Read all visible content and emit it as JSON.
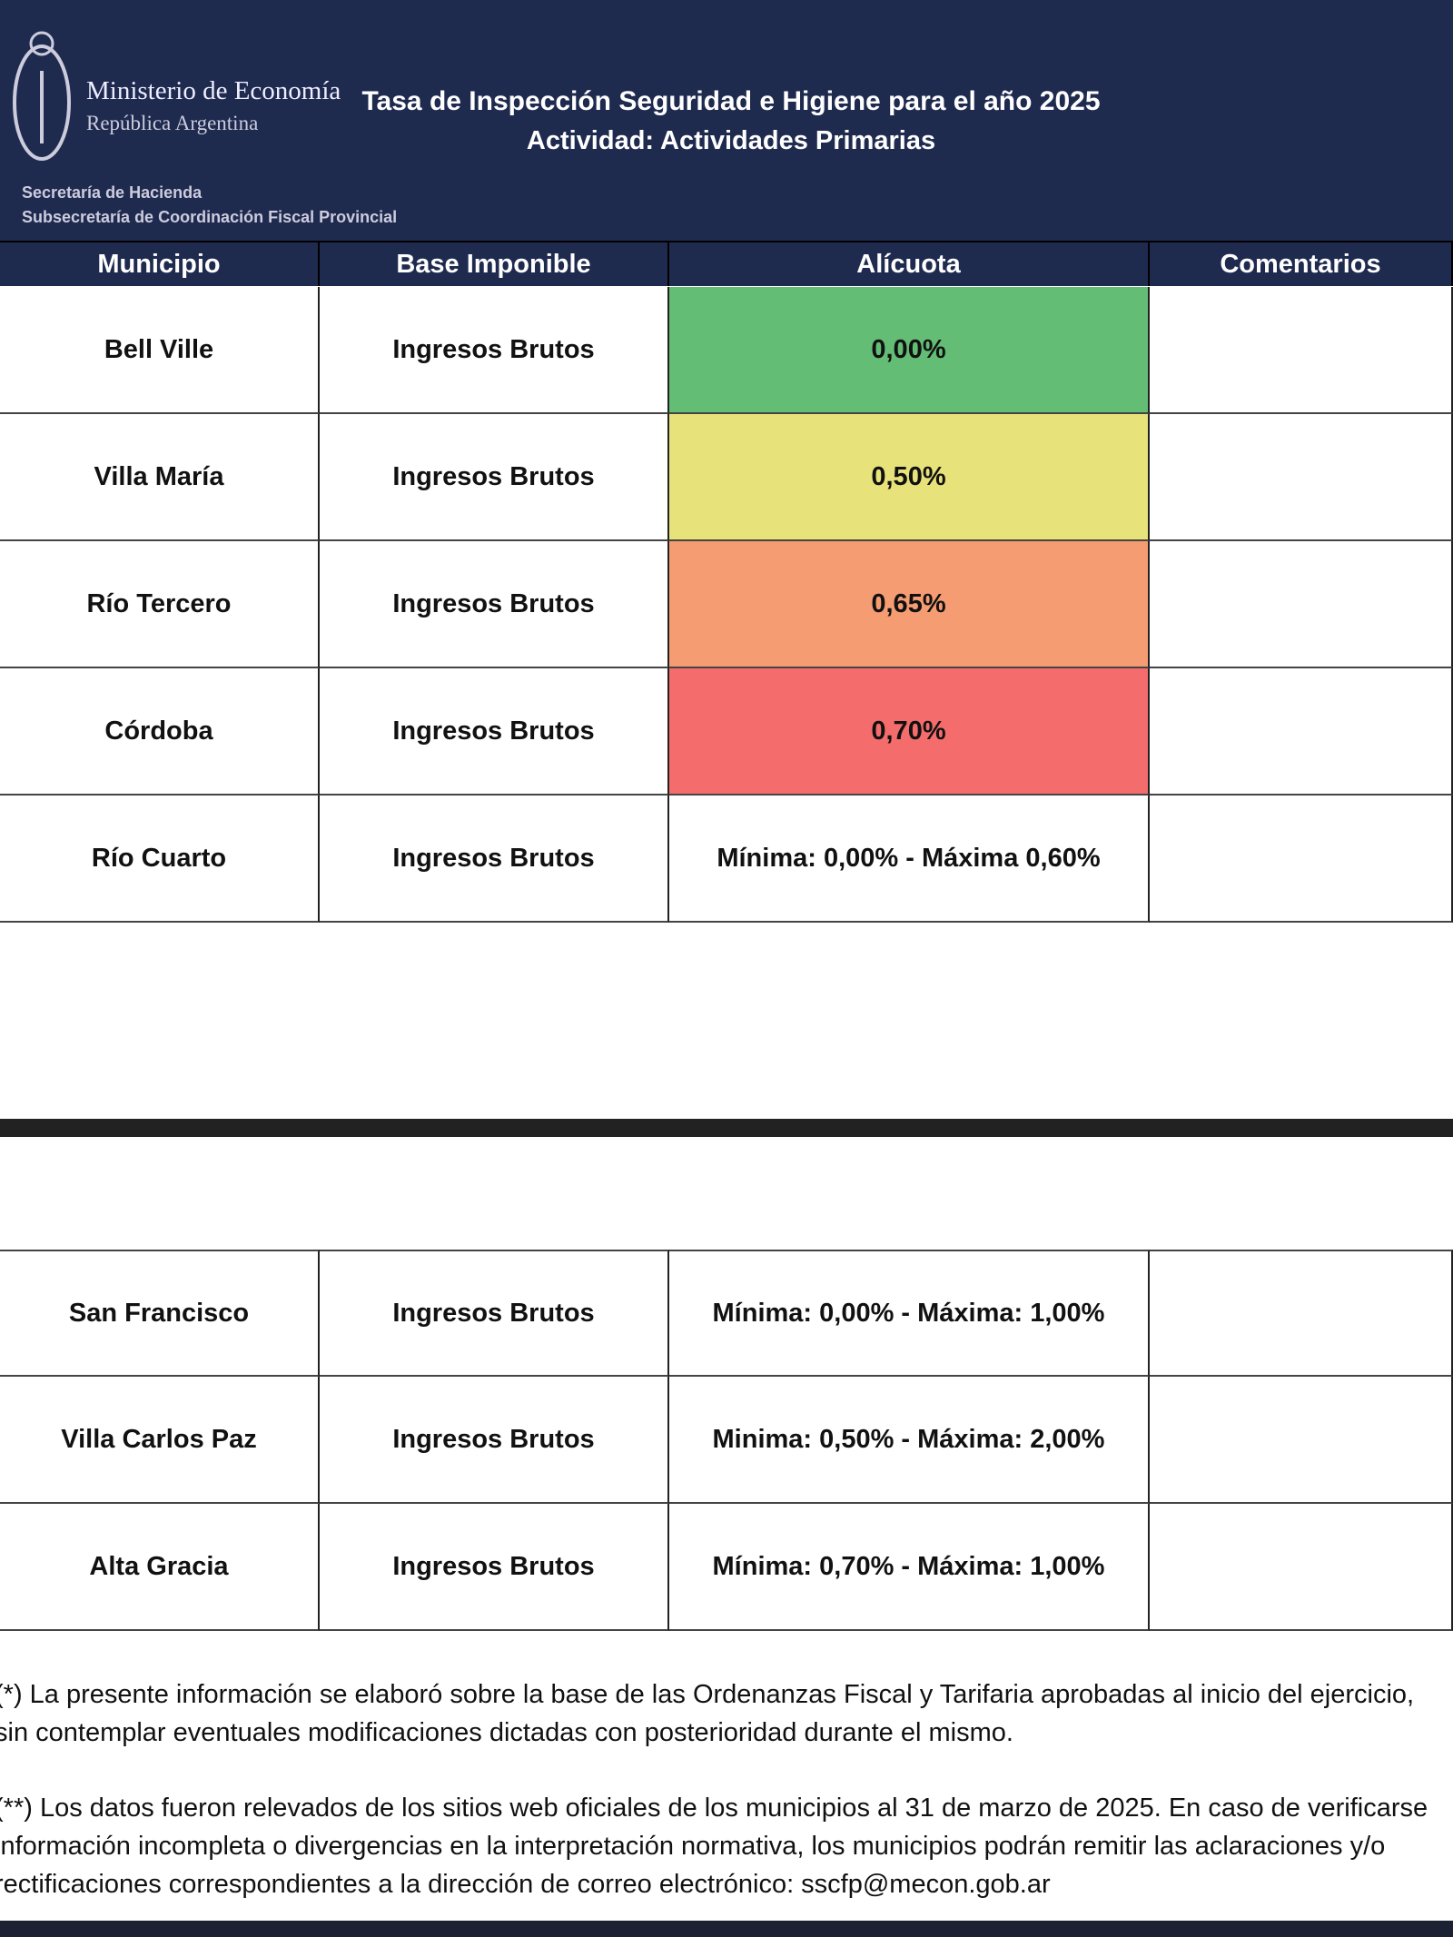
{
  "header": {
    "ministry": "Ministerio de Economía",
    "country": "República Argentina",
    "secretaria": "Secretaría de Hacienda",
    "subsecretaria": "Subsecretaría de Coordinación Fiscal Provincial",
    "title": "Tasa de Inspección Seguridad e Higiene para el año 2025",
    "subtitle": "Actividad: Actividades Primarias"
  },
  "table": {
    "columns": [
      "Municipio",
      "Base Imponible",
      "Alícuota",
      "Comentarios"
    ],
    "rows": [
      [
        "Bell Ville",
        "Ingresos Brutos",
        "0,00%"
      ],
      [
        "Villa María",
        "Ingresos Brutos",
        "0,50%"
      ],
      [
        "Río Tercero",
        "Ingresos Brutos",
        "0,65%"
      ],
      [
        "Córdoba",
        "Ingresos Brutos",
        "0,70%"
      ],
      [
        "Río Cuarto",
        "Ingresos Brutos",
        "Mínima: 0,00% - Máxima 0,60%"
      ]
    ],
    "rows2": [
      [
        "San Francisco",
        "Ingresos Brutos",
        "Mínima: 0,00% - Máxima: 1,00%"
      ],
      [
        "Villa Carlos Paz",
        "Ingresos Brutos",
        "Minima: 0,50% - Máxima: 2,00%"
      ],
      [
        "Alta Gracia",
        "Ingresos Brutos",
        "Mínima: 0,70% - Máxima: 1,00%"
      ]
    ]
  },
  "footnotes": [
    "(*) La presente información se elaboró sobre la base de las Ordenanzas Fiscal y Tarifaria aprobadas al inicio del ejercicio, sin contemplar eventuales modificaciones dictadas con posterioridad durante el mismo.",
    "(**) Los datos fueron relevados de los sitios web oficiales de los municipios al 31 de marzo de 2025. En caso de verificarse información incompleta o divergencias en la interpretación normativa, los municipios podrán remitir las aclaraciones y/o rectificaciones correspondientes a la dirección de correo electrónico: sscfp@mecon.gob.ar"
  ]
}
